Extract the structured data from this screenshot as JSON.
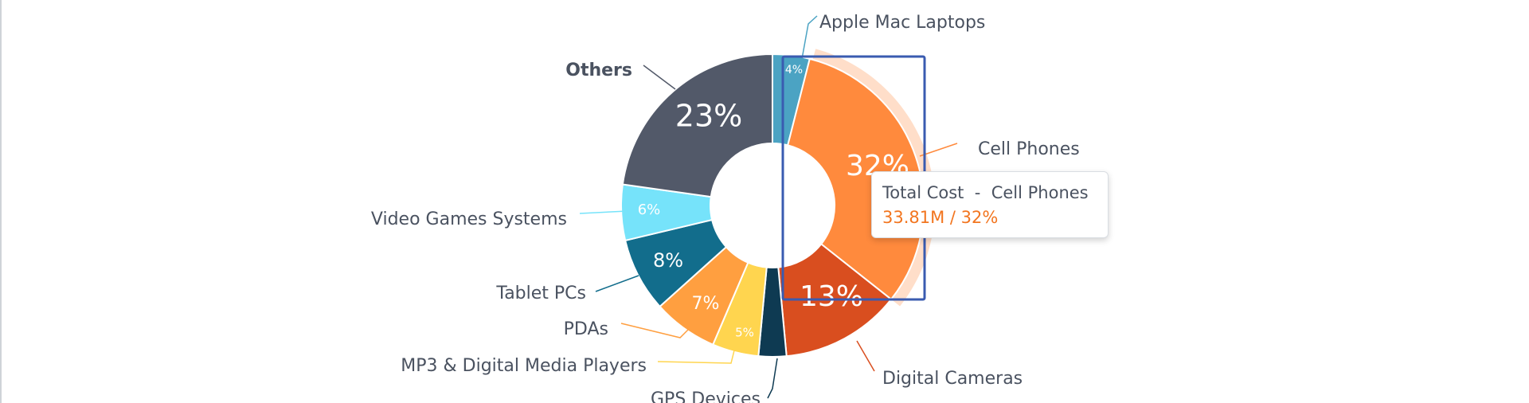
{
  "chart_data": {
    "type": "pie",
    "variant": "donut",
    "title": "",
    "slices": [
      {
        "name": "Apple Mac Laptops",
        "value": 4,
        "label": "4%",
        "color": "#4ba3c3"
      },
      {
        "name": "Cell Phones",
        "value": 32,
        "label": "32%",
        "color": "#ff8a3d"
      },
      {
        "name": "Digital Cameras",
        "value": 13,
        "label": "13%",
        "color": "#d94e1f"
      },
      {
        "name": "GPS Devices",
        "value": 3,
        "label": "",
        "color": "#0e3a52"
      },
      {
        "name": "MP3 & Digital Media Players",
        "value": 5,
        "label": "5%",
        "color": "#ffd54f"
      },
      {
        "name": "PDAs",
        "value": 7,
        "label": "7%",
        "color": "#ff9f40"
      },
      {
        "name": "Tablet PCs",
        "value": 8,
        "label": "8%",
        "color": "#126d8c"
      },
      {
        "name": "Video Games Systems",
        "value": 6,
        "label": "6%",
        "color": "#76e3fa"
      },
      {
        "name": "Others",
        "value": 23,
        "label": "23%",
        "color": "#525969"
      }
    ],
    "highlighted": "Cell Phones",
    "selection_color": "#3a5bb0"
  },
  "tooltip": {
    "metric": "Total Cost",
    "separator": "-",
    "category": "Cell Phones",
    "value_text": "33.81M / 32%"
  }
}
